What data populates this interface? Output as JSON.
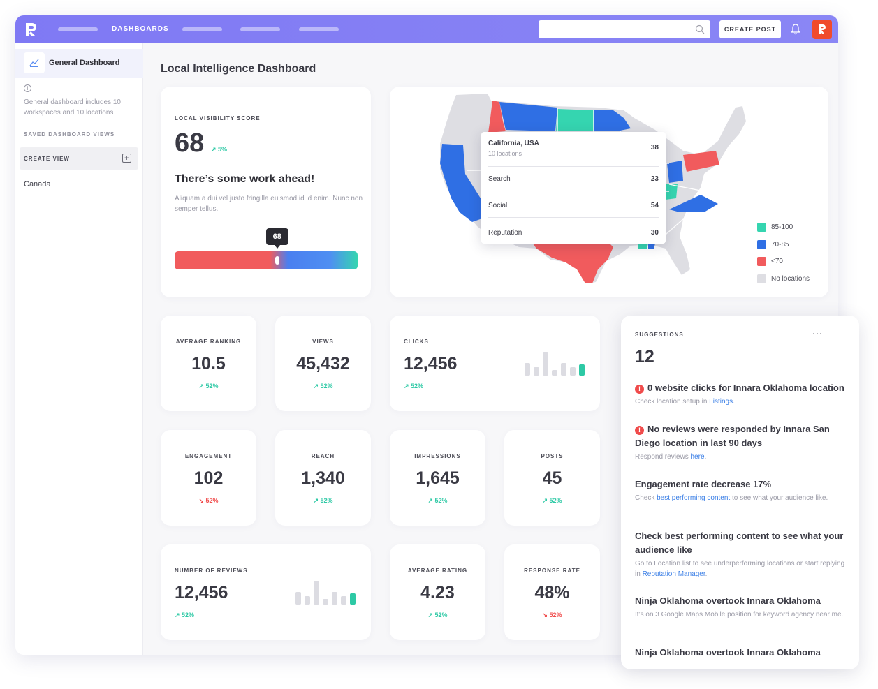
{
  "topbar": {
    "nav_label": "DASHBOARDS",
    "create_post_label": "CREATE POST"
  },
  "sidebar": {
    "active_item": "General Dashboard",
    "info_text": "General dashboard includes 10 workspaces and 10 locations",
    "saved_views_label": "SAVED DASHBOARD VIEWS",
    "create_view_label": "CREATE VIEW",
    "items": [
      "Canada"
    ]
  },
  "page_title": "Local Intelligence Dashboard",
  "visibility": {
    "label": "LOCAL VISIBILITY SCORE",
    "score": "68",
    "trend": "5%",
    "headline": "There’s some work ahead!",
    "body": "Aliquam a dui vel justo fringilla euismod id id enim. Nunc non semper tellus.",
    "tooltip": "68",
    "level_fraction": 0.56
  },
  "map": {
    "tooltip": {
      "title": "California, USA",
      "subtitle": "10 locations",
      "total": "38",
      "rows": [
        {
          "name": "Search",
          "value": "23"
        },
        {
          "name": "Social",
          "value": "54"
        },
        {
          "name": "Reputation",
          "value": "30"
        }
      ]
    },
    "legend": [
      {
        "label": "85-100",
        "color": "#35d5b0"
      },
      {
        "label": "70-85",
        "color": "#2f6fe4"
      },
      {
        "label": "<70",
        "color": "#f15b5d"
      },
      {
        "label": "No locations",
        "color": "#dedee3"
      }
    ]
  },
  "metrics": {
    "average_ranking": {
      "label": "AVERAGE RANKING",
      "value": "10.5",
      "trend": "52%",
      "direction": "up"
    },
    "views": {
      "label": "VIEWS",
      "value": "45,432",
      "trend": "52%",
      "direction": "up"
    },
    "clicks": {
      "label": "CLICKS",
      "value": "12,456",
      "trend": "52%",
      "direction": "up"
    },
    "engagement": {
      "label": "ENGAGEMENT",
      "value": "102",
      "trend": "52%",
      "direction": "down"
    },
    "reach": {
      "label": "REACH",
      "value": "1,340",
      "trend": "52%",
      "direction": "up"
    },
    "impressions": {
      "label": "IMPRESSIONS",
      "value": "1,645",
      "trend": "52%",
      "direction": "up"
    },
    "posts": {
      "label": "POSTS",
      "value": "45",
      "trend": "52%",
      "direction": "up"
    },
    "number_of_reviews": {
      "label": "NUMBER OF REVIEWS",
      "value": "12,456",
      "trend": "52%",
      "direction": "up"
    },
    "average_rating": {
      "label": "AVERAGE RATING",
      "value": "4.23",
      "trend": "52%",
      "direction": "up"
    },
    "response_rate": {
      "label": "RESPONSE RATE",
      "value": "48%",
      "trend": "52%",
      "direction": "down"
    }
  },
  "suggestions": {
    "label": "SUGGESTIONS",
    "count": "12",
    "items": [
      {
        "title": "0 website clicks for Innara Oklahoma location",
        "desc_pre": "Check location setup in ",
        "link": "Listings",
        "desc_post": ".",
        "alert": true
      },
      {
        "title": "No reviews were responded by Innara San Diego location in last 90 days",
        "desc_pre": "Respond reviews ",
        "link": "here",
        "desc_post": ".",
        "alert": true
      },
      {
        "title": "Engagement rate decrease 17%",
        "desc_pre": "Check ",
        "link": "best performing content",
        "desc_post": " to see what your audience like.",
        "alert": false
      },
      {
        "title": "Check best performing content to see what your audience like",
        "desc_pre": "Go to Location list to see underperforming locations or start replying in ",
        "link": "Reputation Manager",
        "desc_post": ".",
        "alert": false
      },
      {
        "title": "Ninja Oklahoma overtook Innara Oklahoma",
        "desc_pre": "It’s on 3 Google Maps Mobile position for keyword agency near me.",
        "link": "",
        "desc_post": "",
        "alert": false
      },
      {
        "title": "Ninja Oklahoma overtook Innara Oklahoma",
        "desc_pre": "",
        "link": "",
        "desc_post": "",
        "alert": false
      }
    ]
  },
  "colors": {
    "accent": "#7f79f4",
    "teal": "#35d5b0",
    "blue": "#2f6fe4",
    "red": "#f15b5d",
    "link": "#3b7fe6"
  }
}
